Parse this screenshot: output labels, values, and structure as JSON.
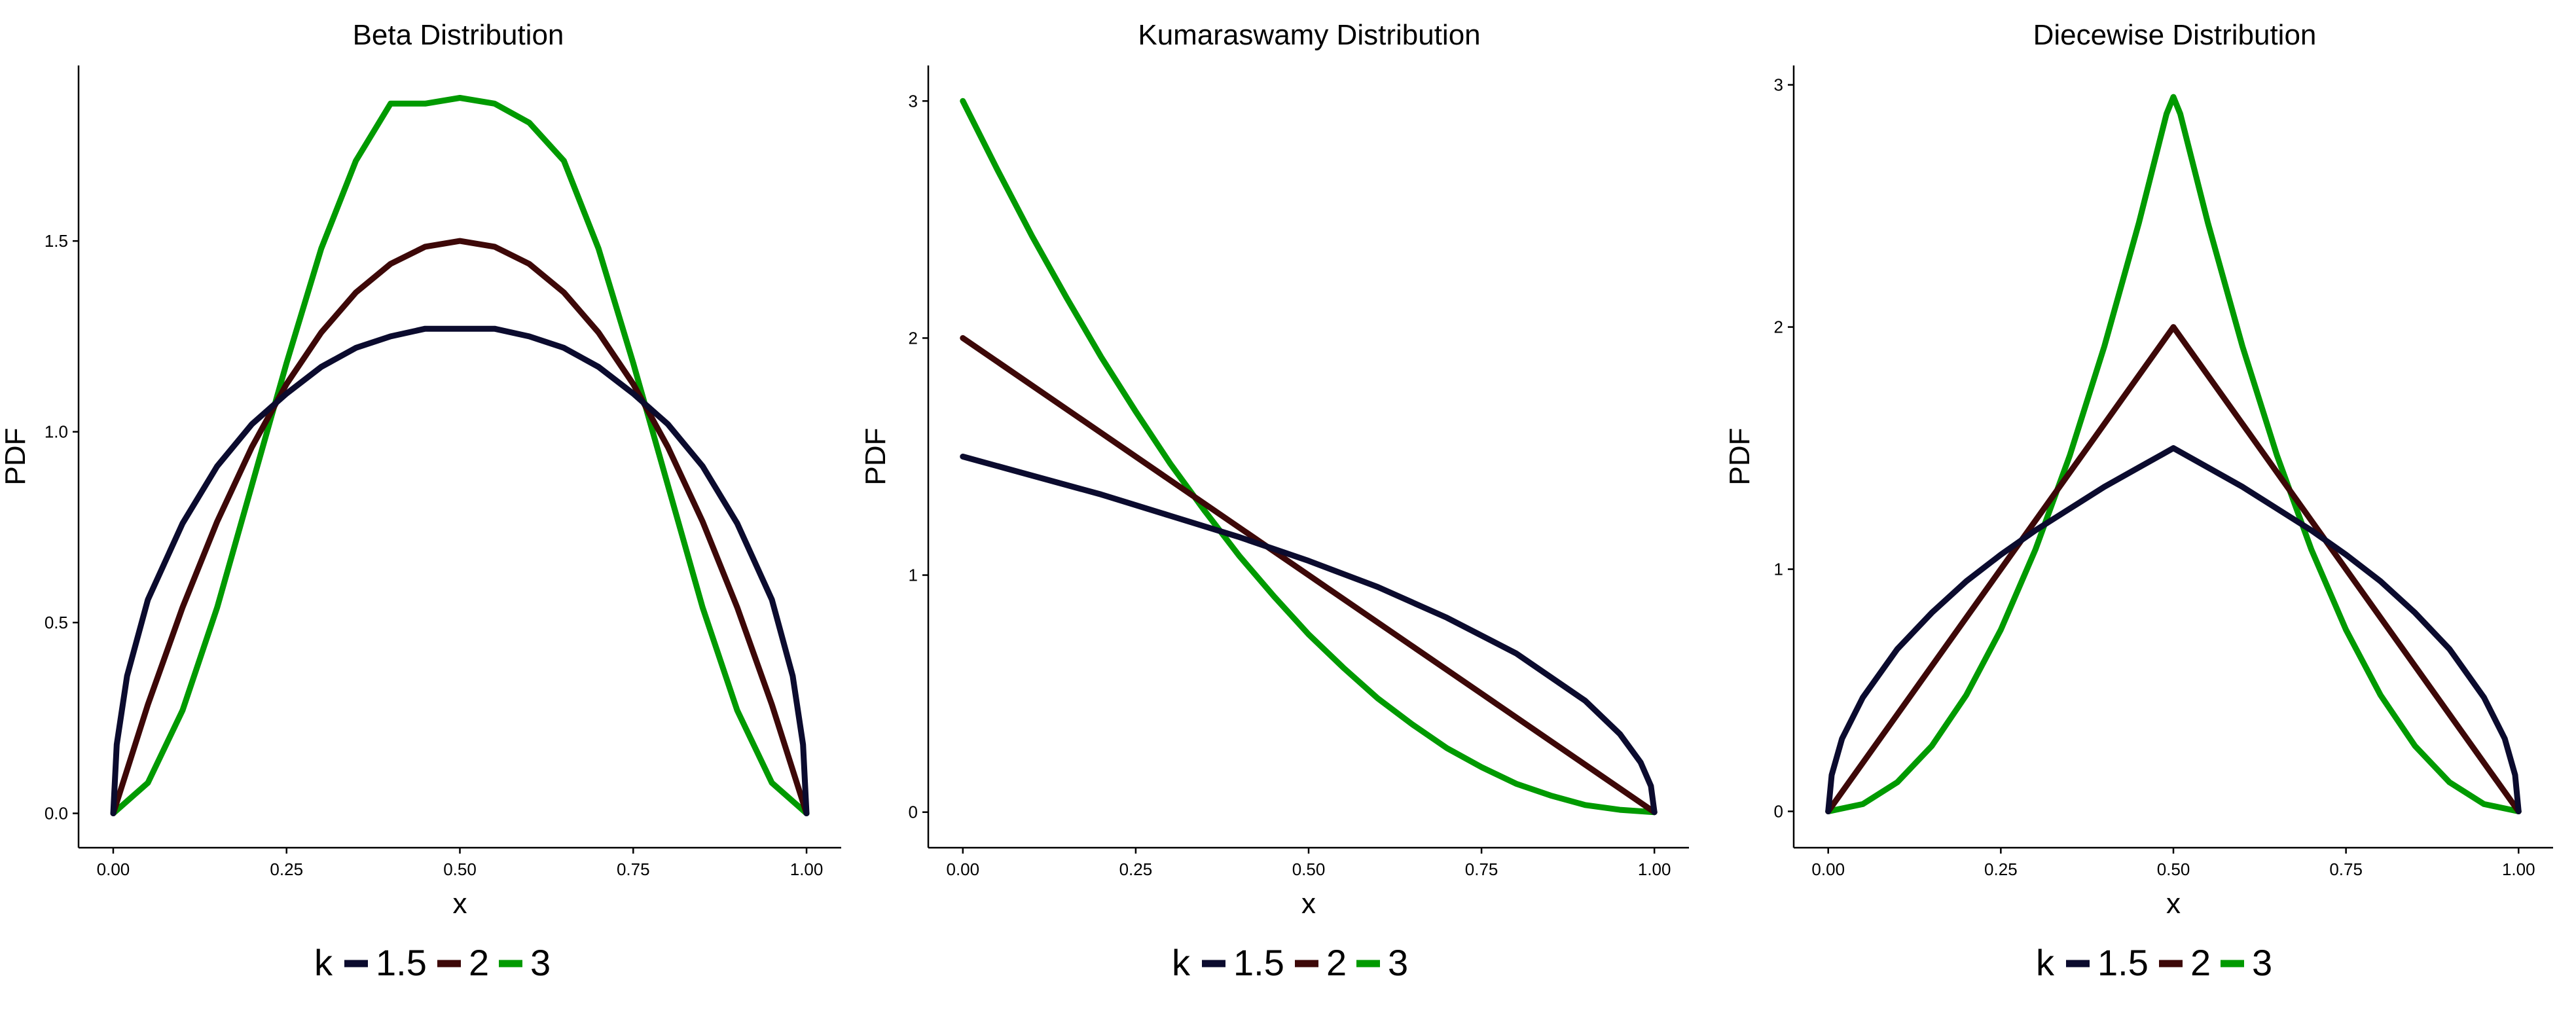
{
  "legend": {
    "title": "k",
    "entries": [
      {
        "label": "1.5",
        "color": "#0b0b2e"
      },
      {
        "label": "2",
        "color": "#3d0808"
      },
      {
        "label": "3",
        "color": "#009a00"
      }
    ]
  },
  "chart_data": [
    {
      "type": "line",
      "title": "Beta Distribution",
      "xlabel": "x",
      "ylabel": "PDF",
      "xlim": [
        -0.05,
        1.05
      ],
      "ylim": [
        -0.09,
        1.96
      ],
      "xticks": [
        0,
        0.25,
        0.5,
        0.75,
        1
      ],
      "xtick_labels": [
        "0.00",
        "0.25",
        "0.50",
        "0.75",
        "1.00"
      ],
      "yticks": [
        0,
        0.5,
        1,
        1.5
      ],
      "ytick_labels": [
        "0.0",
        "0.5",
        "1.0",
        "1.5"
      ],
      "grid": false,
      "legend_position": "bottom",
      "series": [
        {
          "name": "1.5",
          "color": "#0b0b2e",
          "x": [
            0,
            0.005,
            0.02,
            0.05,
            0.1,
            0.15,
            0.2,
            0.25,
            0.3,
            0.35,
            0.4,
            0.45,
            0.5,
            0.55,
            0.6,
            0.65,
            0.7,
            0.75,
            0.8,
            0.85,
            0.9,
            0.95,
            0.98,
            0.995,
            1
          ],
          "y": [
            0,
            0.18,
            0.36,
            0.56,
            0.76,
            0.91,
            1.02,
            1.1,
            1.17,
            1.22,
            1.25,
            1.27,
            1.27,
            1.27,
            1.25,
            1.22,
            1.17,
            1.1,
            1.02,
            0.91,
            0.76,
            0.56,
            0.36,
            0.18,
            0
          ]
        },
        {
          "name": "2",
          "color": "#3d0808",
          "x": [
            0,
            0.05,
            0.1,
            0.15,
            0.2,
            0.25,
            0.3,
            0.35,
            0.4,
            0.45,
            0.5,
            0.55,
            0.6,
            0.65,
            0.7,
            0.75,
            0.8,
            0.85,
            0.9,
            0.95,
            1
          ],
          "y": [
            0,
            0.285,
            0.54,
            0.765,
            0.96,
            1.125,
            1.26,
            1.365,
            1.44,
            1.485,
            1.5,
            1.485,
            1.44,
            1.365,
            1.26,
            1.125,
            0.96,
            0.765,
            0.54,
            0.285,
            0
          ]
        },
        {
          "name": "3",
          "color": "#009a00",
          "x": [
            0,
            0.05,
            0.1,
            0.15,
            0.2,
            0.25,
            0.3,
            0.35,
            0.4,
            0.45,
            0.5,
            0.55,
            0.6,
            0.65,
            0.7,
            0.75,
            0.8,
            0.85,
            0.9,
            0.95,
            1
          ],
          "y": [
            0,
            0.08,
            0.27,
            0.54,
            0.86,
            1.18,
            1.48,
            1.71,
            1.86,
            1.86,
            1.875,
            1.86,
            1.81,
            1.71,
            1.48,
            1.18,
            0.86,
            0.54,
            0.27,
            0.08,
            0
          ]
        }
      ]
    },
    {
      "type": "line",
      "title": "Kumaraswamy Distribution",
      "xlabel": "x",
      "ylabel": "PDF",
      "xlim": [
        -0.05,
        1.05
      ],
      "ylim": [
        -0.15,
        3.15
      ],
      "xticks": [
        0,
        0.25,
        0.5,
        0.75,
        1
      ],
      "xtick_labels": [
        "0.00",
        "0.25",
        "0.50",
        "0.75",
        "1.00"
      ],
      "yticks": [
        0,
        1,
        2,
        3
      ],
      "ytick_labels": [
        "0",
        "1",
        "2",
        "3"
      ],
      "grid": false,
      "legend_position": "bottom",
      "series": [
        {
          "name": "1.5",
          "color": "#0b0b2e",
          "x": [
            0,
            0.1,
            0.2,
            0.3,
            0.4,
            0.5,
            0.6,
            0.7,
            0.8,
            0.9,
            0.95,
            0.98,
            0.995,
            1
          ],
          "y": [
            1.5,
            1.42,
            1.34,
            1.25,
            1.16,
            1.06,
            0.95,
            0.82,
            0.67,
            0.47,
            0.33,
            0.21,
            0.11,
            0
          ]
        },
        {
          "name": "2",
          "color": "#3d0808",
          "x": [
            0,
            0.25,
            0.5,
            0.75,
            1
          ],
          "y": [
            2,
            1.5,
            1,
            0.5,
            0
          ]
        },
        {
          "name": "3",
          "color": "#009a00",
          "x": [
            0,
            0.05,
            0.1,
            0.15,
            0.2,
            0.25,
            0.3,
            0.35,
            0.4,
            0.45,
            0.5,
            0.55,
            0.6,
            0.65,
            0.7,
            0.75,
            0.8,
            0.85,
            0.9,
            0.95,
            1
          ],
          "y": [
            3,
            2.71,
            2.43,
            2.17,
            1.92,
            1.69,
            1.47,
            1.27,
            1.08,
            0.91,
            0.75,
            0.61,
            0.48,
            0.37,
            0.27,
            0.19,
            0.12,
            0.07,
            0.03,
            0.01,
            0
          ]
        }
      ]
    },
    {
      "type": "line",
      "title": "Diecewise Distribution",
      "xlabel": "x",
      "ylabel": "PDF",
      "xlim": [
        -0.05,
        1.05
      ],
      "ylim": [
        -0.15,
        3.08
      ],
      "xticks": [
        0,
        0.25,
        0.5,
        0.75,
        1
      ],
      "xtick_labels": [
        "0.00",
        "0.25",
        "0.50",
        "0.75",
        "1.00"
      ],
      "yticks": [
        0,
        1,
        2,
        3
      ],
      "ytick_labels": [
        "0",
        "1",
        "2",
        "3"
      ],
      "grid": false,
      "legend_position": "bottom",
      "series": [
        {
          "name": "1.5",
          "color": "#0b0b2e",
          "x": [
            0,
            0.005,
            0.02,
            0.05,
            0.1,
            0.15,
            0.2,
            0.25,
            0.3,
            0.35,
            0.4,
            0.45,
            0.5,
            0.55,
            0.6,
            0.65,
            0.7,
            0.75,
            0.8,
            0.85,
            0.9,
            0.95,
            0.98,
            0.995,
            1
          ],
          "y": [
            0,
            0.15,
            0.3,
            0.47,
            0.67,
            0.82,
            0.95,
            1.06,
            1.16,
            1.25,
            1.34,
            1.42,
            1.5,
            1.42,
            1.34,
            1.25,
            1.16,
            1.06,
            0.95,
            0.82,
            0.67,
            0.47,
            0.3,
            0.15,
            0
          ]
        },
        {
          "name": "2",
          "color": "#3d0808",
          "x": [
            0,
            0.25,
            0.5,
            0.75,
            1
          ],
          "y": [
            0,
            1,
            2,
            1,
            0
          ]
        },
        {
          "name": "3",
          "color": "#009a00",
          "x": [
            0,
            0.05,
            0.1,
            0.15,
            0.2,
            0.25,
            0.3,
            0.35,
            0.4,
            0.45,
            0.49,
            0.5,
            0.51,
            0.55,
            0.6,
            0.65,
            0.7,
            0.75,
            0.8,
            0.85,
            0.9,
            0.95,
            1
          ],
          "y": [
            0,
            0.03,
            0.12,
            0.27,
            0.48,
            0.75,
            1.08,
            1.47,
            1.92,
            2.43,
            2.88,
            2.95,
            2.88,
            2.43,
            1.92,
            1.47,
            1.08,
            0.75,
            0.48,
            0.27,
            0.12,
            0.03,
            0
          ]
        }
      ]
    }
  ]
}
